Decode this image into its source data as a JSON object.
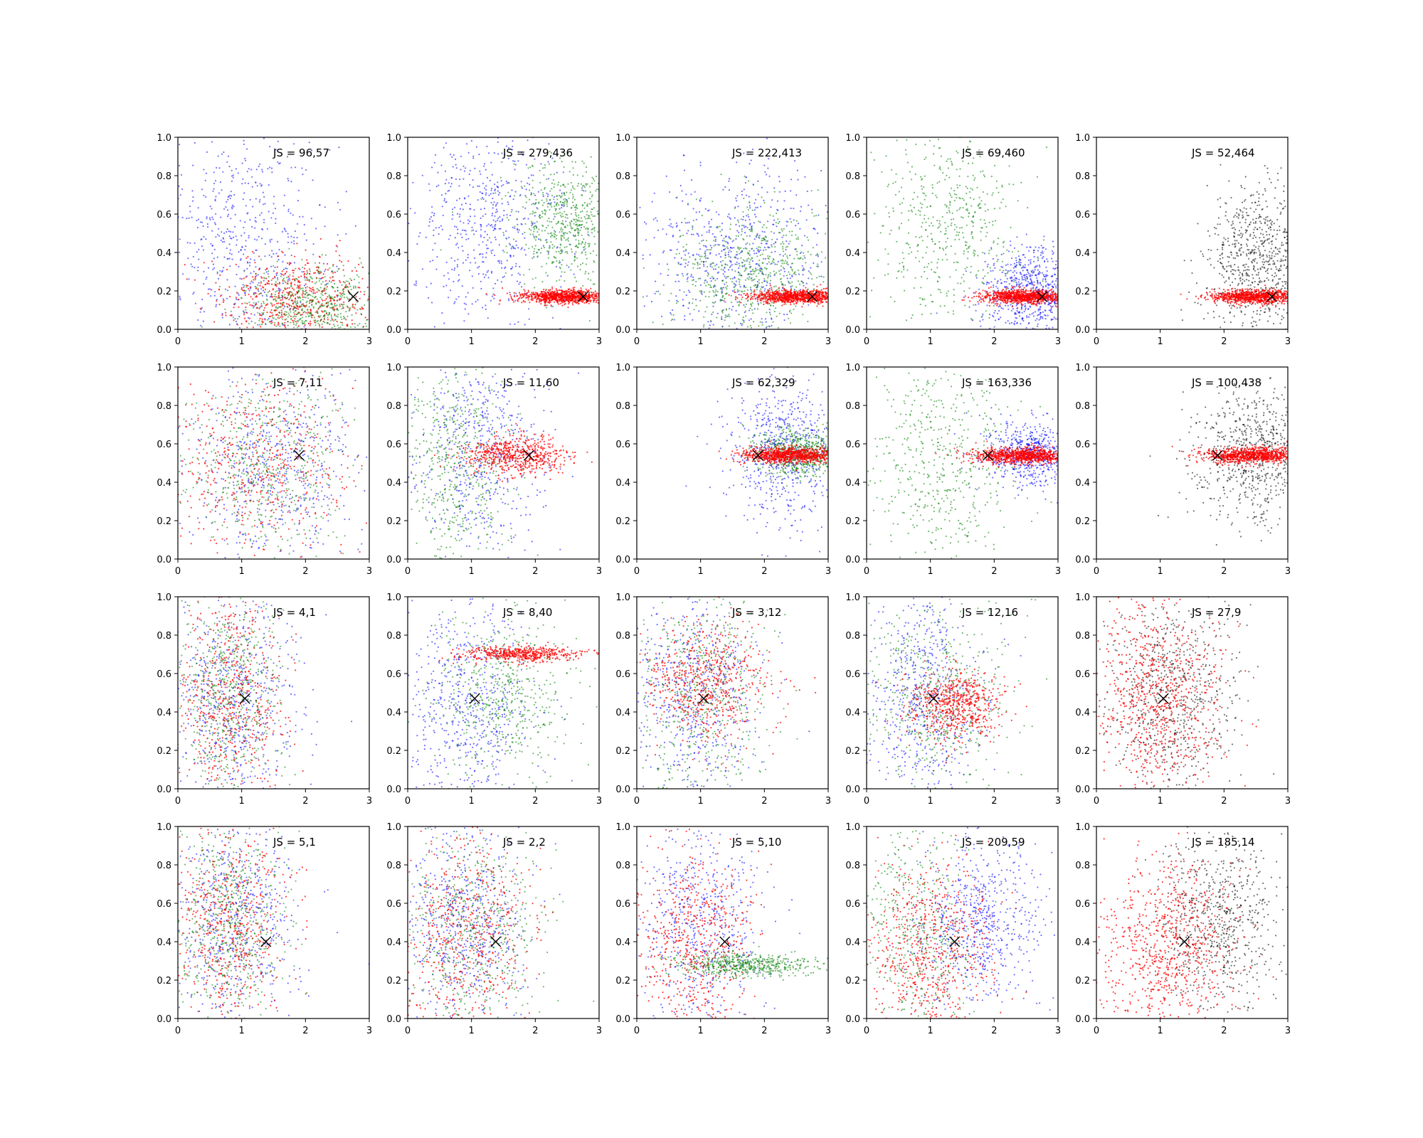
{
  "figure": {
    "rows": 4,
    "cols": 5,
    "xlim": [
      0,
      3
    ],
    "ylim": [
      0.0,
      1.0
    ],
    "xticks": [
      "0",
      "1",
      "2",
      "3"
    ],
    "yticks": [
      "0.0",
      "0.2",
      "0.4",
      "0.6",
      "0.8",
      "1.0"
    ],
    "series_colors": {
      "blue": "#0000ff",
      "green": "#008000",
      "red": "#ff0000",
      "black": "#000000"
    },
    "marker": "X"
  },
  "chart_data": [
    {
      "type": "scatter",
      "title": "JS = 96,57",
      "marker": [
        2.75,
        0.17
      ],
      "series": [
        {
          "name": "blue",
          "color": "#0000ff",
          "cloud": {
            "cx": 1.0,
            "sx": 0.7,
            "cy": 0.45,
            "sy": 0.3,
            "n": 600
          }
        },
        {
          "name": "red",
          "color": "#ff0000",
          "cloud": {
            "cx": 1.9,
            "sx": 0.6,
            "cy": 0.15,
            "sy": 0.12,
            "n": 600
          }
        },
        {
          "name": "green",
          "color": "#008000",
          "cloud": {
            "cx": 2.1,
            "sx": 0.55,
            "cy": 0.13,
            "sy": 0.1,
            "n": 600
          }
        }
      ]
    },
    {
      "type": "scatter",
      "title": "JS = 279,436",
      "marker": [
        2.75,
        0.17
      ],
      "series": [
        {
          "name": "blue",
          "color": "#0000ff",
          "cloud": {
            "cx": 1.3,
            "sx": 0.6,
            "cy": 0.55,
            "sy": 0.28,
            "n": 600
          }
        },
        {
          "name": "green",
          "color": "#008000",
          "cloud": {
            "cx": 2.5,
            "sx": 0.45,
            "cy": 0.55,
            "sy": 0.15,
            "n": 650
          }
        },
        {
          "name": "red",
          "color": "#ff0000",
          "cloud": {
            "cx": 2.45,
            "sx": 0.35,
            "cy": 0.17,
            "sy": 0.018,
            "n": 900
          }
        }
      ]
    },
    {
      "type": "scatter",
      "title": "JS = 222,413",
      "marker": [
        2.75,
        0.17
      ],
      "series": [
        {
          "name": "blue",
          "color": "#0000ff",
          "cloud": {
            "cx": 1.5,
            "sx": 0.75,
            "cy": 0.38,
            "sy": 0.25,
            "n": 650
          }
        },
        {
          "name": "green",
          "color": "#008000",
          "cloud": {
            "cx": 1.8,
            "sx": 0.65,
            "cy": 0.28,
            "sy": 0.18,
            "n": 650
          }
        },
        {
          "name": "red",
          "color": "#ff0000",
          "cloud": {
            "cx": 2.5,
            "sx": 0.35,
            "cy": 0.17,
            "sy": 0.018,
            "n": 900
          }
        }
      ]
    },
    {
      "type": "scatter",
      "title": "JS = 69,460",
      "marker": [
        2.75,
        0.17
      ],
      "series": [
        {
          "name": "green",
          "color": "#008000",
          "cloud": {
            "cx": 1.3,
            "sx": 0.6,
            "cy": 0.55,
            "sy": 0.28,
            "n": 550
          }
        },
        {
          "name": "blue",
          "color": "#0000ff",
          "cloud": {
            "cx": 2.6,
            "sx": 0.4,
            "cy": 0.2,
            "sy": 0.12,
            "n": 700
          }
        },
        {
          "name": "red",
          "color": "#ff0000",
          "cloud": {
            "cx": 2.45,
            "sx": 0.35,
            "cy": 0.17,
            "sy": 0.018,
            "n": 900
          }
        }
      ]
    },
    {
      "type": "scatter",
      "title": "JS = 52,464",
      "marker": [
        2.75,
        0.17
      ],
      "series": [
        {
          "name": "black",
          "color": "#000000",
          "cloud": {
            "cx": 2.55,
            "sx": 0.45,
            "cy": 0.35,
            "sy": 0.2,
            "n": 800
          }
        },
        {
          "name": "red",
          "color": "#ff0000",
          "cloud": {
            "cx": 2.5,
            "sx": 0.35,
            "cy": 0.17,
            "sy": 0.018,
            "n": 900
          }
        }
      ]
    },
    {
      "type": "scatter",
      "title": "JS = 7,11",
      "marker": [
        1.9,
        0.54
      ],
      "series": [
        {
          "name": "blue",
          "color": "#0000ff",
          "cloud": {
            "cx": 1.5,
            "sx": 0.7,
            "cy": 0.5,
            "sy": 0.25,
            "n": 550
          }
        },
        {
          "name": "red",
          "color": "#ff0000",
          "cloud": {
            "cx": 1.3,
            "sx": 0.7,
            "cy": 0.5,
            "sy": 0.25,
            "n": 550
          }
        },
        {
          "name": "green",
          "color": "#008000",
          "cloud": {
            "cx": 1.4,
            "sx": 0.7,
            "cy": 0.5,
            "sy": 0.25,
            "n": 550
          }
        }
      ]
    },
    {
      "type": "scatter",
      "title": "JS = 11,60",
      "marker": [
        1.9,
        0.54
      ],
      "series": [
        {
          "name": "blue",
          "color": "#0000ff",
          "cloud": {
            "cx": 1.1,
            "sx": 0.55,
            "cy": 0.55,
            "sy": 0.25,
            "n": 550
          }
        },
        {
          "name": "green",
          "color": "#008000",
          "cloud": {
            "cx": 0.8,
            "sx": 0.4,
            "cy": 0.5,
            "sy": 0.28,
            "n": 550
          }
        },
        {
          "name": "red",
          "color": "#ff0000",
          "cloud": {
            "cx": 1.7,
            "sx": 0.4,
            "cy": 0.54,
            "sy": 0.05,
            "n": 600
          }
        }
      ]
    },
    {
      "type": "scatter",
      "title": "JS = 62,329",
      "marker": [
        1.9,
        0.54
      ],
      "series": [
        {
          "name": "blue",
          "color": "#0000ff",
          "cloud": {
            "cx": 2.3,
            "sx": 0.45,
            "cy": 0.55,
            "sy": 0.18,
            "n": 650
          }
        },
        {
          "name": "green",
          "color": "#008000",
          "cloud": {
            "cx": 2.55,
            "sx": 0.35,
            "cy": 0.55,
            "sy": 0.06,
            "n": 650
          }
        },
        {
          "name": "red",
          "color": "#ff0000",
          "cloud": {
            "cx": 2.4,
            "sx": 0.4,
            "cy": 0.54,
            "sy": 0.02,
            "n": 900
          }
        }
      ]
    },
    {
      "type": "scatter",
      "title": "JS = 163,336",
      "marker": [
        1.9,
        0.54
      ],
      "series": [
        {
          "name": "green",
          "color": "#008000",
          "cloud": {
            "cx": 1.2,
            "sx": 0.6,
            "cy": 0.5,
            "sy": 0.28,
            "n": 550
          }
        },
        {
          "name": "blue",
          "color": "#0000ff",
          "cloud": {
            "cx": 2.6,
            "sx": 0.35,
            "cy": 0.55,
            "sy": 0.08,
            "n": 650
          }
        },
        {
          "name": "red",
          "color": "#ff0000",
          "cloud": {
            "cx": 2.45,
            "sx": 0.38,
            "cy": 0.54,
            "sy": 0.02,
            "n": 900
          }
        }
      ]
    },
    {
      "type": "scatter",
      "title": "JS = 100,438",
      "marker": [
        1.9,
        0.54
      ],
      "series": [
        {
          "name": "black",
          "color": "#000000",
          "cloud": {
            "cx": 2.5,
            "sx": 0.45,
            "cy": 0.55,
            "sy": 0.18,
            "n": 750
          }
        },
        {
          "name": "red",
          "color": "#ff0000",
          "cloud": {
            "cx": 2.45,
            "sx": 0.38,
            "cy": 0.54,
            "sy": 0.02,
            "n": 900
          }
        }
      ]
    },
    {
      "type": "scatter",
      "title": "JS = 4,1",
      "marker": [
        1.05,
        0.47
      ],
      "series": [
        {
          "name": "blue",
          "color": "#0000ff",
          "cloud": {
            "cx": 0.9,
            "sx": 0.5,
            "cy": 0.48,
            "sy": 0.28,
            "n": 600
          }
        },
        {
          "name": "red",
          "color": "#ff0000",
          "cloud": {
            "cx": 0.8,
            "sx": 0.45,
            "cy": 0.48,
            "sy": 0.28,
            "n": 600
          }
        },
        {
          "name": "green",
          "color": "#008000",
          "cloud": {
            "cx": 0.75,
            "sx": 0.4,
            "cy": 0.48,
            "sy": 0.28,
            "n": 600
          }
        }
      ]
    },
    {
      "type": "scatter",
      "title": "JS = 8,40",
      "marker": [
        1.05,
        0.47
      ],
      "series": [
        {
          "name": "blue",
          "color": "#0000ff",
          "cloud": {
            "cx": 0.9,
            "sx": 0.5,
            "cy": 0.45,
            "sy": 0.28,
            "n": 600
          }
        },
        {
          "name": "green",
          "color": "#008000",
          "cloud": {
            "cx": 1.5,
            "sx": 0.55,
            "cy": 0.5,
            "sy": 0.22,
            "n": 550
          }
        },
        {
          "name": "red",
          "color": "#ff0000",
          "cloud": {
            "cx": 1.8,
            "sx": 0.45,
            "cy": 0.7,
            "sy": 0.02,
            "n": 500
          }
        }
      ]
    },
    {
      "type": "scatter",
      "title": "JS = 3,12",
      "marker": [
        1.05,
        0.47
      ],
      "series": [
        {
          "name": "blue",
          "color": "#0000ff",
          "cloud": {
            "cx": 0.9,
            "sx": 0.5,
            "cy": 0.48,
            "sy": 0.28,
            "n": 600
          }
        },
        {
          "name": "green",
          "color": "#008000",
          "cloud": {
            "cx": 1.0,
            "sx": 0.55,
            "cy": 0.48,
            "sy": 0.28,
            "n": 550
          }
        },
        {
          "name": "red",
          "color": "#ff0000",
          "cloud": {
            "cx": 1.1,
            "sx": 0.5,
            "cy": 0.55,
            "sy": 0.15,
            "n": 600
          }
        }
      ]
    },
    {
      "type": "scatter",
      "title": "JS = 12,16",
      "marker": [
        1.05,
        0.47
      ],
      "series": [
        {
          "name": "blue",
          "color": "#0000ff",
          "cloud": {
            "cx": 0.9,
            "sx": 0.45,
            "cy": 0.48,
            "sy": 0.28,
            "n": 600
          }
        },
        {
          "name": "green",
          "color": "#008000",
          "cloud": {
            "cx": 1.1,
            "sx": 0.55,
            "cy": 0.48,
            "sy": 0.25,
            "n": 550
          }
        },
        {
          "name": "red",
          "color": "#ff0000",
          "cloud": {
            "cx": 1.4,
            "sx": 0.35,
            "cy": 0.44,
            "sy": 0.09,
            "n": 600
          }
        }
      ]
    },
    {
      "type": "scatter",
      "title": "JS = 27,9",
      "marker": [
        1.05,
        0.47
      ],
      "series": [
        {
          "name": "black",
          "color": "#000000",
          "cloud": {
            "cx": 1.2,
            "sx": 0.5,
            "cy": 0.5,
            "sy": 0.25,
            "n": 700
          }
        },
        {
          "name": "red",
          "color": "#ff0000",
          "cloud": {
            "cx": 1.0,
            "sx": 0.5,
            "cy": 0.48,
            "sy": 0.25,
            "n": 800
          }
        }
      ]
    },
    {
      "type": "scatter",
      "title": "JS = 5,1",
      "marker": [
        1.38,
        0.4
      ],
      "series": [
        {
          "name": "blue",
          "color": "#0000ff",
          "cloud": {
            "cx": 0.9,
            "sx": 0.5,
            "cy": 0.48,
            "sy": 0.28,
            "n": 600
          }
        },
        {
          "name": "red",
          "color": "#ff0000",
          "cloud": {
            "cx": 0.8,
            "sx": 0.45,
            "cy": 0.48,
            "sy": 0.28,
            "n": 600
          }
        },
        {
          "name": "green",
          "color": "#008000",
          "cloud": {
            "cx": 0.8,
            "sx": 0.45,
            "cy": 0.48,
            "sy": 0.28,
            "n": 600
          }
        }
      ]
    },
    {
      "type": "scatter",
      "title": "JS = 2,2",
      "marker": [
        1.38,
        0.4
      ],
      "series": [
        {
          "name": "blue",
          "color": "#0000ff",
          "cloud": {
            "cx": 0.9,
            "sx": 0.5,
            "cy": 0.48,
            "sy": 0.28,
            "n": 600
          }
        },
        {
          "name": "red",
          "color": "#ff0000",
          "cloud": {
            "cx": 0.9,
            "sx": 0.5,
            "cy": 0.45,
            "sy": 0.28,
            "n": 600
          }
        },
        {
          "name": "green",
          "color": "#008000",
          "cloud": {
            "cx": 1.0,
            "sx": 0.55,
            "cy": 0.45,
            "sy": 0.28,
            "n": 550
          }
        }
      ]
    },
    {
      "type": "scatter",
      "title": "JS = 5,10",
      "marker": [
        1.38,
        0.4
      ],
      "series": [
        {
          "name": "blue",
          "color": "#0000ff",
          "cloud": {
            "cx": 1.0,
            "sx": 0.55,
            "cy": 0.48,
            "sy": 0.28,
            "n": 600
          }
        },
        {
          "name": "red",
          "color": "#ff0000",
          "cloud": {
            "cx": 0.9,
            "sx": 0.5,
            "cy": 0.4,
            "sy": 0.25,
            "n": 600
          }
        },
        {
          "name": "green",
          "color": "#008000",
          "cloud": {
            "cx": 1.7,
            "sx": 0.55,
            "cy": 0.28,
            "sy": 0.03,
            "n": 550
          }
        }
      ]
    },
    {
      "type": "scatter",
      "title": "JS = 209,59",
      "marker": [
        1.38,
        0.4
      ],
      "series": [
        {
          "name": "green",
          "color": "#008000",
          "cloud": {
            "cx": 0.8,
            "sx": 0.45,
            "cy": 0.45,
            "sy": 0.3,
            "n": 500
          }
        },
        {
          "name": "blue",
          "color": "#0000ff",
          "cloud": {
            "cx": 1.8,
            "sx": 0.5,
            "cy": 0.5,
            "sy": 0.22,
            "n": 650
          }
        },
        {
          "name": "red",
          "color": "#ff0000",
          "cloud": {
            "cx": 1.0,
            "sx": 0.5,
            "cy": 0.35,
            "sy": 0.25,
            "n": 650
          }
        }
      ]
    },
    {
      "type": "scatter",
      "title": "JS = 185,14",
      "marker": [
        1.38,
        0.4
      ],
      "series": [
        {
          "name": "black",
          "color": "#000000",
          "cloud": {
            "cx": 1.9,
            "sx": 0.5,
            "cy": 0.5,
            "sy": 0.22,
            "n": 700
          }
        },
        {
          "name": "red",
          "color": "#ff0000",
          "cloud": {
            "cx": 1.1,
            "sx": 0.55,
            "cy": 0.35,
            "sy": 0.25,
            "n": 800
          }
        }
      ]
    }
  ]
}
